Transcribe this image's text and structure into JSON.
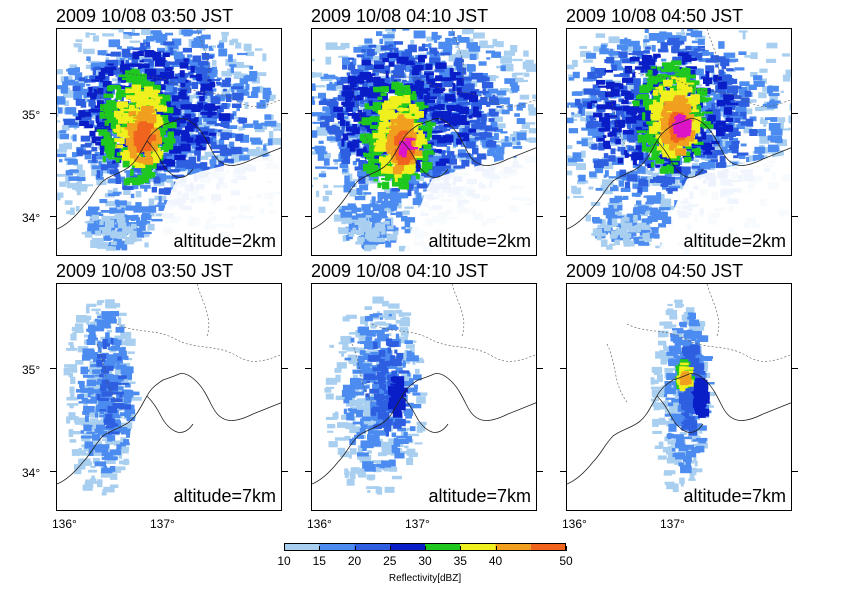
{
  "panels": [
    {
      "time": "2009 10/08 03:50 JST",
      "altitude": "altitude=2km",
      "level": "low",
      "variant": 0
    },
    {
      "time": "2009 10/08 04:10 JST",
      "altitude": "altitude=2km",
      "level": "low",
      "variant": 1
    },
    {
      "time": "2009 10/08 04:50 JST",
      "altitude": "altitude=2km",
      "level": "low",
      "variant": 2
    },
    {
      "time": "2009 10/08 03:50 JST",
      "altitude": "altitude=7km",
      "level": "high",
      "variant": 0
    },
    {
      "time": "2009 10/08 04:10 JST",
      "altitude": "altitude=7km",
      "level": "high",
      "variant": 1
    },
    {
      "time": "2009 10/08 04:50 JST",
      "altitude": "altitude=7km",
      "level": "high",
      "variant": 2
    }
  ],
  "lat_labels": [
    "35°",
    "34°"
  ],
  "lon_labels": [
    "136°",
    "137°"
  ],
  "colorbar": {
    "title": "Reflectivity[dBZ]",
    "ticks": [
      "10",
      "15",
      "20",
      "25",
      "30",
      "35",
      "40",
      "50"
    ],
    "colors": [
      "#a9cff0",
      "#4c8cf0",
      "#2d5fe0",
      "#0a1ec8",
      "#1ec81e",
      "#f0f01e",
      "#f0a01e",
      "#f0641e",
      "#dc14c8"
    ]
  }
}
